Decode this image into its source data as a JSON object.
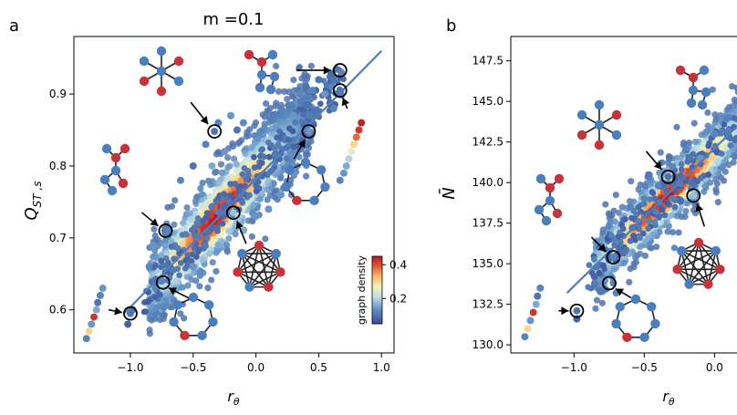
{
  "figure": {
    "panels": [
      "a",
      "b"
    ],
    "title": "m =0.1"
  },
  "colors": {
    "node_blue": "#4a7fbf",
    "node_red": "#c8323a",
    "fit_line": "#4f7fb8",
    "cmap_low": "#3b4b94",
    "cmap_high": "#b2182b"
  },
  "chart_data": [
    {
      "panel": "a",
      "type": "scatter",
      "title": "m =0.1",
      "xlabel": "r_θ",
      "ylabel": "Q_ST,s",
      "xlim": [
        -1.45,
        1.1
      ],
      "ylim": [
        0.54,
        0.98
      ],
      "xticks": [
        -1.0,
        -0.5,
        0.0,
        0.5,
        1.0
      ],
      "yticks": [
        0.6,
        0.7,
        0.8,
        0.9
      ],
      "xtick_labels": [
        "−1.0",
        "−0.5",
        "0.0",
        "0.5",
        "1.0"
      ],
      "ytick_labels": [
        "0.6",
        "0.7",
        "0.8",
        "0.9"
      ],
      "colorbar": {
        "label": "graph density",
        "ticks": [
          0.2,
          0.4
        ],
        "tick_labels": [
          "0.2",
          "0.4"
        ],
        "range": [
          0.05,
          0.45
        ]
      },
      "fit_line": {
        "x": [
          -1.05,
          1.0
        ],
        "y": [
          0.595,
          0.96
        ]
      },
      "dense_band": {
        "x_range": [
          -0.85,
          0.45
        ],
        "slope": 0.19,
        "intercept": 0.79,
        "spread": 0.03
      },
      "points": [
        {
          "x": -1.35,
          "y": 0.56,
          "c": 0.12
        },
        {
          "x": -1.33,
          "y": 0.57,
          "c": 0.3
        },
        {
          "x": -1.31,
          "y": 0.58,
          "c": 0.14
        },
        {
          "x": -1.29,
          "y": 0.59,
          "c": 0.42
        },
        {
          "x": -1.27,
          "y": 0.6,
          "c": 0.16
        },
        {
          "x": -1.26,
          "y": 0.61,
          "c": 0.1
        },
        {
          "x": -1.24,
          "y": 0.62,
          "c": 0.12
        },
        {
          "x": -1.22,
          "y": 0.63,
          "c": 0.14
        },
        {
          "x": -1.0,
          "y": 0.595,
          "c": 0.1
        },
        {
          "x": -1.02,
          "y": 0.58,
          "c": 0.08
        },
        {
          "x": -0.98,
          "y": 0.6,
          "c": 0.1
        },
        {
          "x": 0.67,
          "y": 0.78,
          "c": 0.12
        },
        {
          "x": 0.7,
          "y": 0.79,
          "c": 0.14
        },
        {
          "x": 0.72,
          "y": 0.8,
          "c": 0.16
        },
        {
          "x": 0.74,
          "y": 0.81,
          "c": 0.2
        },
        {
          "x": 0.76,
          "y": 0.82,
          "c": 0.25
        },
        {
          "x": 0.78,
          "y": 0.83,
          "c": 0.3
        },
        {
          "x": 0.8,
          "y": 0.84,
          "c": 0.38
        },
        {
          "x": 0.82,
          "y": 0.85,
          "c": 0.42
        },
        {
          "x": 0.84,
          "y": 0.86,
          "c": 0.44
        },
        {
          "x": -0.33,
          "y": 0.848,
          "c": 0.1
        },
        {
          "x": -0.3,
          "y": 0.86,
          "c": 0.12
        },
        {
          "x": -0.2,
          "y": 0.87,
          "c": 0.14
        },
        {
          "x": -0.15,
          "y": 0.85,
          "c": 0.1
        },
        {
          "x": -0.1,
          "y": 0.86,
          "c": 0.13
        },
        {
          "x": -0.4,
          "y": 0.83,
          "c": 0.12
        },
        {
          "x": -0.5,
          "y": 0.8,
          "c": 0.1
        },
        {
          "x": -0.6,
          "y": 0.78,
          "c": 0.12
        },
        {
          "x": -0.25,
          "y": 0.82,
          "c": 0.14
        },
        {
          "x": -0.35,
          "y": 0.8,
          "c": 0.16
        },
        {
          "x": 0.35,
          "y": 0.9,
          "c": 0.12
        },
        {
          "x": 0.4,
          "y": 0.91,
          "c": 0.1
        },
        {
          "x": 0.45,
          "y": 0.905,
          "c": 0.12
        },
        {
          "x": 0.5,
          "y": 0.92,
          "c": 0.1
        },
        {
          "x": 0.55,
          "y": 0.9,
          "c": 0.14
        },
        {
          "x": 0.6,
          "y": 0.91,
          "c": 0.12
        },
        {
          "x": 0.65,
          "y": 0.9,
          "c": 0.1
        },
        {
          "x": 0.68,
          "y": 0.93,
          "c": 0.12
        },
        {
          "x": 0.67,
          "y": 0.905,
          "c": 0.1
        },
        {
          "x": 0.62,
          "y": 0.88,
          "c": 0.12
        },
        {
          "x": 0.3,
          "y": 0.87,
          "c": 0.14
        },
        {
          "x": 0.2,
          "y": 0.88,
          "c": 0.12
        },
        {
          "x": -0.7,
          "y": 0.71,
          "c": 0.12
        },
        {
          "x": -0.75,
          "y": 0.64,
          "c": 0.12
        },
        {
          "x": -0.8,
          "y": 0.63,
          "c": 0.12
        },
        {
          "x": -0.85,
          "y": 0.66,
          "c": 0.12
        },
        {
          "x": -0.82,
          "y": 0.69,
          "c": 0.14
        },
        {
          "x": -0.18,
          "y": 0.735,
          "c": 0.18
        },
        {
          "x": 0.42,
          "y": 0.848,
          "c": 0.14
        },
        {
          "x": 0.1,
          "y": 0.74,
          "c": 0.14
        },
        {
          "x": 0.2,
          "y": 0.76,
          "c": 0.14
        },
        {
          "x": 0.3,
          "y": 0.79,
          "c": 0.14
        },
        {
          "x": 0.0,
          "y": 0.73,
          "c": 0.14
        },
        {
          "x": -0.1,
          "y": 0.71,
          "c": 0.16
        },
        {
          "x": -0.3,
          "y": 0.69,
          "c": 0.16
        },
        {
          "x": -0.5,
          "y": 0.66,
          "c": 0.14
        }
      ],
      "callouts": [
        {
          "x": -1.0,
          "y": 0.595,
          "graph": "path"
        },
        {
          "x": -0.74,
          "y": 0.638,
          "graph": "ring"
        },
        {
          "x": -0.72,
          "y": 0.71,
          "graph": "tree_small"
        },
        {
          "x": -0.33,
          "y": 0.848,
          "graph": "star"
        },
        {
          "x": -0.18,
          "y": 0.735,
          "graph": "complete"
        },
        {
          "x": 0.42,
          "y": 0.848,
          "graph": "ring"
        },
        {
          "x": 0.67,
          "y": 0.905,
          "graph": "tree_small"
        },
        {
          "x": 0.67,
          "y": 0.933,
          "graph": "tree_small"
        }
      ]
    },
    {
      "panel": "b",
      "type": "scatter",
      "title": "",
      "xlabel": "r_θ",
      "ylabel": "N̄",
      "xlim": [
        -1.45,
        0.4
      ],
      "ylim": [
        129.5,
        149.0
      ],
      "xticks": [
        -1.0,
        -0.5,
        0.0
      ],
      "yticks": [
        130.0,
        132.5,
        135.0,
        137.5,
        140.0,
        142.5,
        145.0,
        147.5
      ],
      "xtick_labels": [
        "−1.0",
        "−0.5",
        "0.0"
      ],
      "ytick_labels": [
        "130.0",
        "132.5",
        "135.0",
        "137.5",
        "140.0",
        "142.5",
        "145.0",
        "147.5"
      ],
      "fit_line": {
        "x": [
          -1.05,
          0.4
        ],
        "y": [
          133.2,
          145.5
        ]
      },
      "dense_band": {
        "x_range": [
          -0.85,
          0.4
        ],
        "slope": 8.4,
        "intercept": 142.0,
        "spread": 1.0
      },
      "points": [
        {
          "x": -1.35,
          "y": 130.5,
          "c": 0.12
        },
        {
          "x": -1.33,
          "y": 131.0,
          "c": 0.3
        },
        {
          "x": -1.31,
          "y": 131.5,
          "c": 0.14
        },
        {
          "x": -1.29,
          "y": 132.0,
          "c": 0.42
        },
        {
          "x": -1.27,
          "y": 132.5,
          "c": 0.16
        },
        {
          "x": -1.26,
          "y": 133.0,
          "c": 0.1
        },
        {
          "x": -1.24,
          "y": 133.5,
          "c": 0.12
        },
        {
          "x": -0.98,
          "y": 132.1,
          "c": 0.1
        },
        {
          "x": -0.98,
          "y": 131.6,
          "c": 0.08
        },
        {
          "x": -0.72,
          "y": 133.8,
          "c": 0.12
        },
        {
          "x": -0.7,
          "y": 133.2,
          "c": 0.12
        },
        {
          "x": -0.72,
          "y": 135.4,
          "c": 0.12
        },
        {
          "x": -0.33,
          "y": 140.35,
          "c": 0.1
        },
        {
          "x": -0.3,
          "y": 141.0,
          "c": 0.12
        },
        {
          "x": -0.4,
          "y": 139.8,
          "c": 0.12
        },
        {
          "x": -0.5,
          "y": 139.0,
          "c": 0.12
        },
        {
          "x": -0.15,
          "y": 139.2,
          "c": 0.18
        },
        {
          "x": 0.2,
          "y": 142.0,
          "c": 0.14
        },
        {
          "x": 0.3,
          "y": 143.0,
          "c": 0.14
        },
        {
          "x": -0.1,
          "y": 141.5,
          "c": 0.14
        },
        {
          "x": -0.2,
          "y": 142.0,
          "c": 0.12
        },
        {
          "x": 0.0,
          "y": 143.0,
          "c": 0.12
        },
        {
          "x": 0.1,
          "y": 144.0,
          "c": 0.12
        },
        {
          "x": -0.6,
          "y": 138.5,
          "c": 0.12
        }
      ],
      "callouts": [
        {
          "x": -0.98,
          "y": 132.1,
          "graph": "path"
        },
        {
          "x": -0.75,
          "y": 133.8,
          "graph": "ring"
        },
        {
          "x": -0.72,
          "y": 135.4,
          "graph": "tree_small"
        },
        {
          "x": -0.33,
          "y": 140.35,
          "graph": "star"
        },
        {
          "x": -0.15,
          "y": 139.2,
          "graph": "complete"
        }
      ]
    }
  ]
}
